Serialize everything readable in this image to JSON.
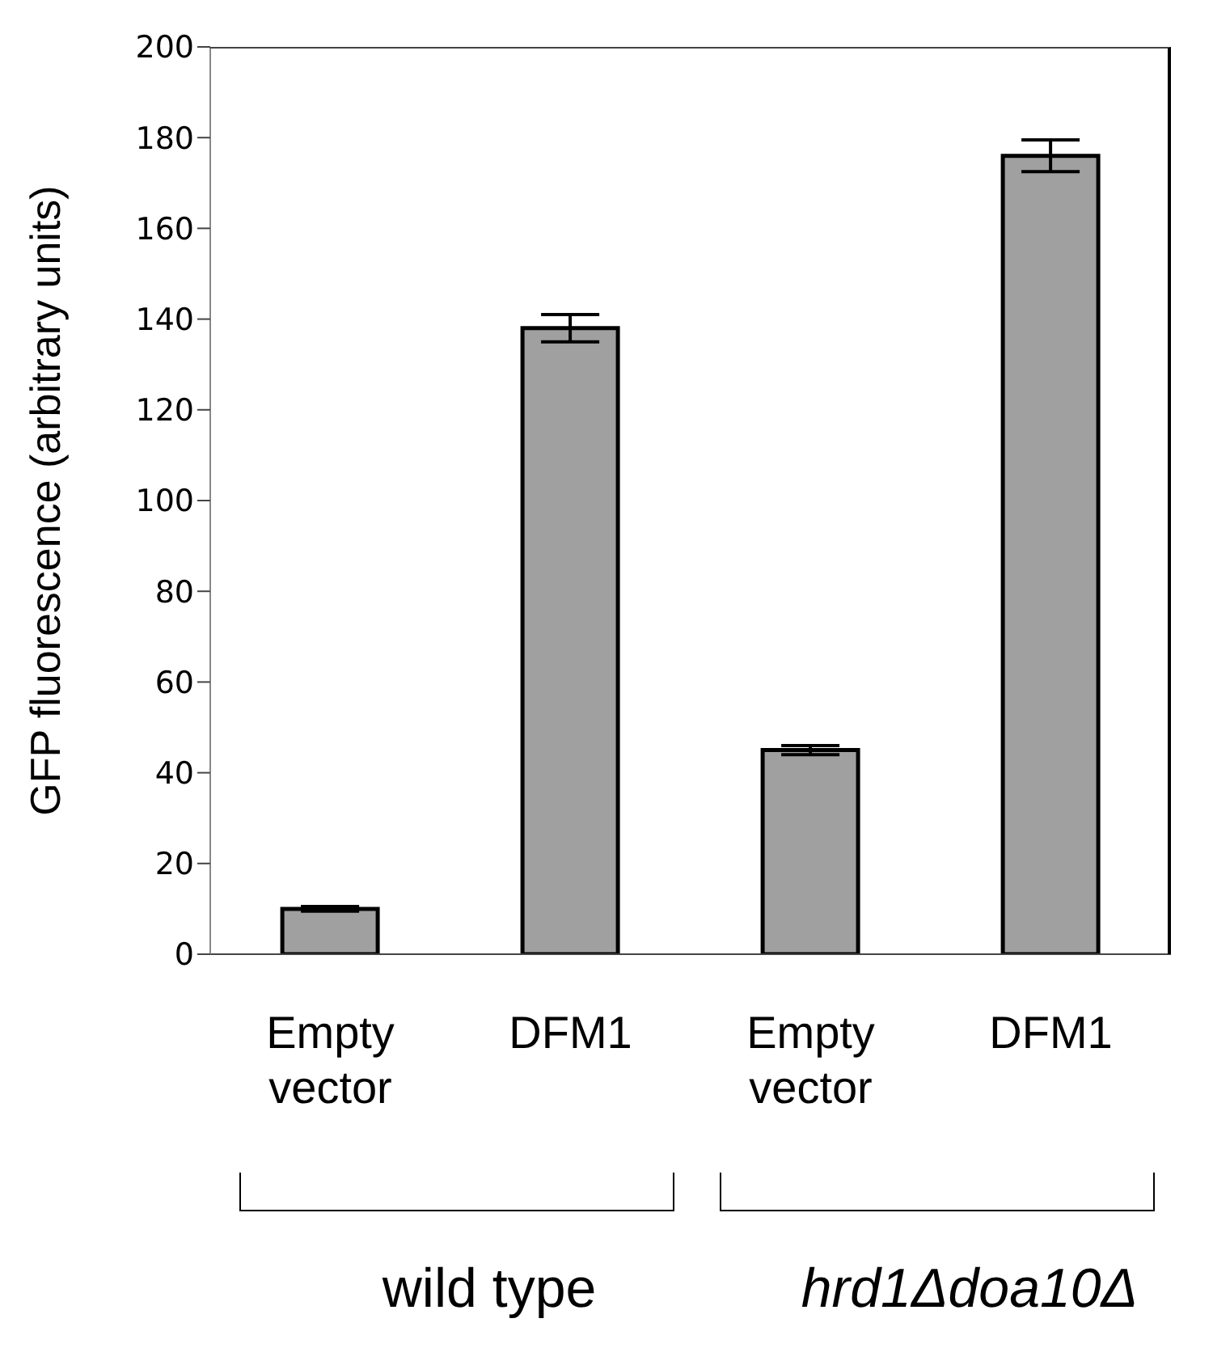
{
  "chart_data": {
    "type": "bar",
    "ylabel": "GFP fluorescence (arbitrary units)",
    "categories": [
      "Empty vector",
      "DFM1",
      "Empty vector",
      "DFM1"
    ],
    "values": [
      10,
      138,
      45,
      176
    ],
    "errors": [
      0.5,
      3,
      1,
      3.5
    ],
    "color": "#a0a0a0",
    "ylim": [
      0,
      200
    ],
    "yticks": [
      0,
      20,
      40,
      60,
      80,
      100,
      120,
      140,
      160,
      180,
      200
    ],
    "annotations": [
      "wild type",
      "hrd1Δdoa10Δ"
    ]
  }
}
